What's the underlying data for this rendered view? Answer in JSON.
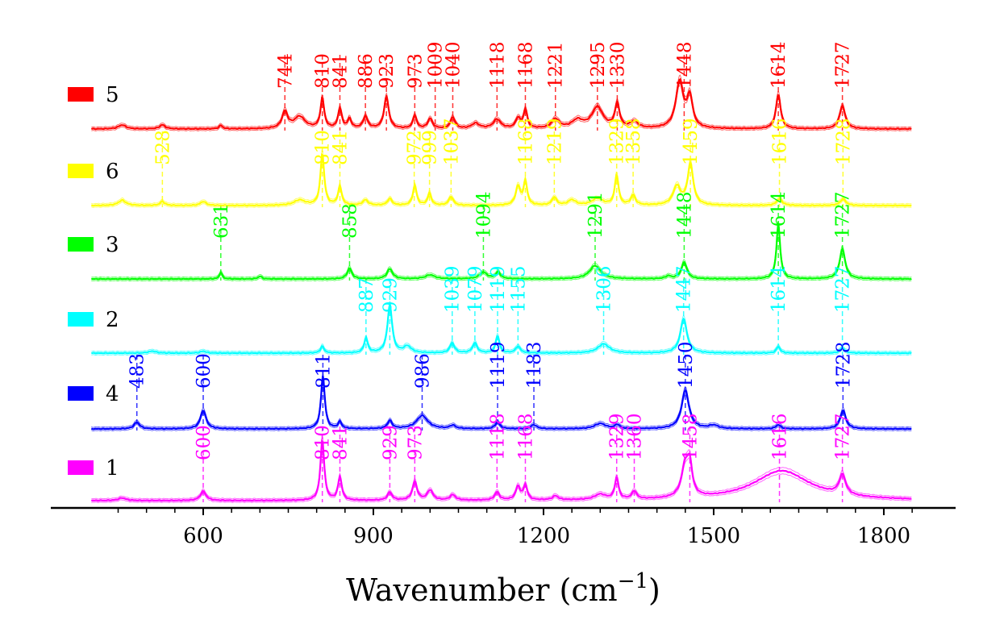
{
  "chart_data": {
    "type": "line",
    "xlabel": "Wavenumber (cm",
    "xlabel_sup": "−1",
    "xlabel_close": ")",
    "xlim": [
      400,
      1850
    ],
    "xticks_major": [
      600,
      900,
      1200,
      1500,
      1800
    ],
    "xtick_labels": [
      "600",
      "900",
      "1200",
      "1500",
      "1800"
    ],
    "grid": false,
    "legend_position": "left",
    "series": [
      {
        "name": "5",
        "color": "#ff0000",
        "peaks": [
          {
            "x": 457,
            "h": 0.06,
            "w": 8
          },
          {
            "x": 528,
            "h": 0.06,
            "w": 6
          },
          {
            "x": 631,
            "h": 0.05,
            "w": 4
          },
          {
            "x": 744,
            "h": 0.25,
            "w": 6
          },
          {
            "x": 770,
            "h": 0.18,
            "w": 12
          },
          {
            "x": 810,
            "h": 0.45,
            "w": 4
          },
          {
            "x": 841,
            "h": 0.3,
            "w": 4
          },
          {
            "x": 858,
            "h": 0.14,
            "w": 4
          },
          {
            "x": 886,
            "h": 0.18,
            "w": 5
          },
          {
            "x": 923,
            "h": 0.48,
            "w": 5
          },
          {
            "x": 973,
            "h": 0.2,
            "w": 4
          },
          {
            "x": 1000,
            "h": 0.15,
            "w": 5
          },
          {
            "x": 1040,
            "h": 0.17,
            "w": 5
          },
          {
            "x": 1080,
            "h": 0.08,
            "w": 8
          },
          {
            "x": 1118,
            "h": 0.14,
            "w": 8
          },
          {
            "x": 1155,
            "h": 0.15,
            "w": 5
          },
          {
            "x": 1168,
            "h": 0.28,
            "w": 4
          },
          {
            "x": 1221,
            "h": 0.14,
            "w": 8
          },
          {
            "x": 1260,
            "h": 0.12,
            "w": 12
          },
          {
            "x": 1295,
            "h": 0.32,
            "w": 12
          },
          {
            "x": 1330,
            "h": 0.36,
            "w": 5
          },
          {
            "x": 1360,
            "h": 0.1,
            "w": 8
          },
          {
            "x": 1440,
            "h": 0.7,
            "w": 8
          },
          {
            "x": 1458,
            "h": 0.45,
            "w": 6
          },
          {
            "x": 1614,
            "h": 0.52,
            "w": 5
          },
          {
            "x": 1727,
            "h": 0.35,
            "w": 6
          }
        ],
        "annotations": [
          744,
          810,
          841,
          886,
          923,
          973,
          1009,
          1040,
          1118,
          1168,
          1221,
          1295,
          1330,
          1448,
          1614,
          1727
        ]
      },
      {
        "name": "6",
        "color": "#ffff00",
        "peaks": [
          {
            "x": 457,
            "h": 0.08,
            "w": 8
          },
          {
            "x": 528,
            "h": 0.06,
            "w": 5
          },
          {
            "x": 600,
            "h": 0.06,
            "w": 6
          },
          {
            "x": 770,
            "h": 0.08,
            "w": 12
          },
          {
            "x": 810,
            "h": 0.78,
            "w": 4
          },
          {
            "x": 841,
            "h": 0.28,
            "w": 4
          },
          {
            "x": 886,
            "h": 0.08,
            "w": 6
          },
          {
            "x": 929,
            "h": 0.1,
            "w": 5
          },
          {
            "x": 973,
            "h": 0.3,
            "w": 4
          },
          {
            "x": 999,
            "h": 0.18,
            "w": 4
          },
          {
            "x": 1037,
            "h": 0.13,
            "w": 5
          },
          {
            "x": 1155,
            "h": 0.28,
            "w": 5
          },
          {
            "x": 1168,
            "h": 0.35,
            "w": 4
          },
          {
            "x": 1219,
            "h": 0.12,
            "w": 5
          },
          {
            "x": 1250,
            "h": 0.08,
            "w": 8
          },
          {
            "x": 1295,
            "h": 0.1,
            "w": 12
          },
          {
            "x": 1329,
            "h": 0.45,
            "w": 4
          },
          {
            "x": 1358,
            "h": 0.15,
            "w": 5
          },
          {
            "x": 1435,
            "h": 0.28,
            "w": 8
          },
          {
            "x": 1459,
            "h": 0.62,
            "w": 6
          },
          {
            "x": 1616,
            "h": 0.1,
            "w": 6
          },
          {
            "x": 1728,
            "h": 0.1,
            "w": 6
          }
        ],
        "annotations": [
          528,
          810,
          841,
          972,
          999,
          1037,
          1168,
          1219,
          1329,
          1358,
          1459,
          1616,
          1728
        ]
      },
      {
        "name": "3",
        "color": "#00ff00",
        "peaks": [
          {
            "x": 631,
            "h": 0.1,
            "w": 3
          },
          {
            "x": 700,
            "h": 0.04,
            "w": 4
          },
          {
            "x": 858,
            "h": 0.16,
            "w": 5
          },
          {
            "x": 929,
            "h": 0.15,
            "w": 6
          },
          {
            "x": 1000,
            "h": 0.06,
            "w": 10
          },
          {
            "x": 1094,
            "h": 0.1,
            "w": 8
          },
          {
            "x": 1120,
            "h": 0.1,
            "w": 5
          },
          {
            "x": 1291,
            "h": 0.2,
            "w": 12
          },
          {
            "x": 1420,
            "h": 0.04,
            "w": 6
          },
          {
            "x": 1448,
            "h": 0.25,
            "w": 6
          },
          {
            "x": 1614,
            "h": 0.82,
            "w": 4
          },
          {
            "x": 1727,
            "h": 0.45,
            "w": 6
          }
        ],
        "annotations": [
          631,
          858,
          1094,
          1291,
          1448,
          1614,
          1727
        ]
      },
      {
        "name": "2",
        "color": "#00ffff",
        "peaks": [
          {
            "x": 510,
            "h": 0.03,
            "w": 8
          },
          {
            "x": 600,
            "h": 0.03,
            "w": 6
          },
          {
            "x": 810,
            "h": 0.1,
            "w": 4
          },
          {
            "x": 887,
            "h": 0.22,
            "w": 4
          },
          {
            "x": 929,
            "h": 0.72,
            "w": 5
          },
          {
            "x": 960,
            "h": 0.1,
            "w": 8
          },
          {
            "x": 1039,
            "h": 0.15,
            "w": 5
          },
          {
            "x": 1079,
            "h": 0.15,
            "w": 5
          },
          {
            "x": 1119,
            "h": 0.26,
            "w": 4
          },
          {
            "x": 1155,
            "h": 0.1,
            "w": 5
          },
          {
            "x": 1306,
            "h": 0.14,
            "w": 12
          },
          {
            "x": 1447,
            "h": 0.52,
            "w": 7
          },
          {
            "x": 1614,
            "h": 0.1,
            "w": 4
          },
          {
            "x": 1727,
            "h": 0.08,
            "w": 5
          }
        ],
        "annotations": [
          887,
          929,
          1039,
          1079,
          1119,
          1155,
          1306,
          1447,
          1614,
          1727
        ]
      },
      {
        "name": "4",
        "color": "#0000ff",
        "peaks": [
          {
            "x": 483,
            "h": 0.1,
            "w": 6
          },
          {
            "x": 600,
            "h": 0.28,
            "w": 6
          },
          {
            "x": 811,
            "h": 0.8,
            "w": 4
          },
          {
            "x": 841,
            "h": 0.1,
            "w": 4
          },
          {
            "x": 929,
            "h": 0.12,
            "w": 5
          },
          {
            "x": 986,
            "h": 0.2,
            "w": 12
          },
          {
            "x": 1040,
            "h": 0.05,
            "w": 6
          },
          {
            "x": 1119,
            "h": 0.1,
            "w": 5
          },
          {
            "x": 1183,
            "h": 0.06,
            "w": 6
          },
          {
            "x": 1300,
            "h": 0.08,
            "w": 12
          },
          {
            "x": 1330,
            "h": 0.06,
            "w": 5
          },
          {
            "x": 1450,
            "h": 0.58,
            "w": 8
          },
          {
            "x": 1500,
            "h": 0.05,
            "w": 10
          },
          {
            "x": 1614,
            "h": 0.06,
            "w": 5
          },
          {
            "x": 1728,
            "h": 0.28,
            "w": 6
          }
        ],
        "annotations": [
          483,
          600,
          811,
          986,
          1119,
          1183,
          1450,
          1728
        ]
      },
      {
        "name": "1",
        "color": "#ff00ff",
        "peaks": [
          {
            "x": 457,
            "h": 0.04,
            "w": 8
          },
          {
            "x": 600,
            "h": 0.14,
            "w": 6
          },
          {
            "x": 810,
            "h": 0.92,
            "w": 4
          },
          {
            "x": 841,
            "h": 0.35,
            "w": 4
          },
          {
            "x": 929,
            "h": 0.12,
            "w": 5
          },
          {
            "x": 973,
            "h": 0.28,
            "w": 5
          },
          {
            "x": 1000,
            "h": 0.15,
            "w": 6
          },
          {
            "x": 1040,
            "h": 0.08,
            "w": 6
          },
          {
            "x": 1118,
            "h": 0.12,
            "w": 5
          },
          {
            "x": 1155,
            "h": 0.2,
            "w": 5
          },
          {
            "x": 1168,
            "h": 0.22,
            "w": 4
          },
          {
            "x": 1221,
            "h": 0.06,
            "w": 6
          },
          {
            "x": 1300,
            "h": 0.08,
            "w": 12
          },
          {
            "x": 1329,
            "h": 0.32,
            "w": 4
          },
          {
            "x": 1360,
            "h": 0.12,
            "w": 5
          },
          {
            "x": 1450,
            "h": 0.48,
            "w": 8
          },
          {
            "x": 1458,
            "h": 0.4,
            "w": 5
          },
          {
            "x": 1620,
            "h": 0.45,
            "w": 60
          },
          {
            "x": 1727,
            "h": 0.3,
            "w": 7
          }
        ],
        "annotations": [
          600,
          810,
          841,
          929,
          973,
          1118,
          1168,
          1329,
          1360,
          1458,
          1616,
          1727
        ]
      }
    ]
  }
}
